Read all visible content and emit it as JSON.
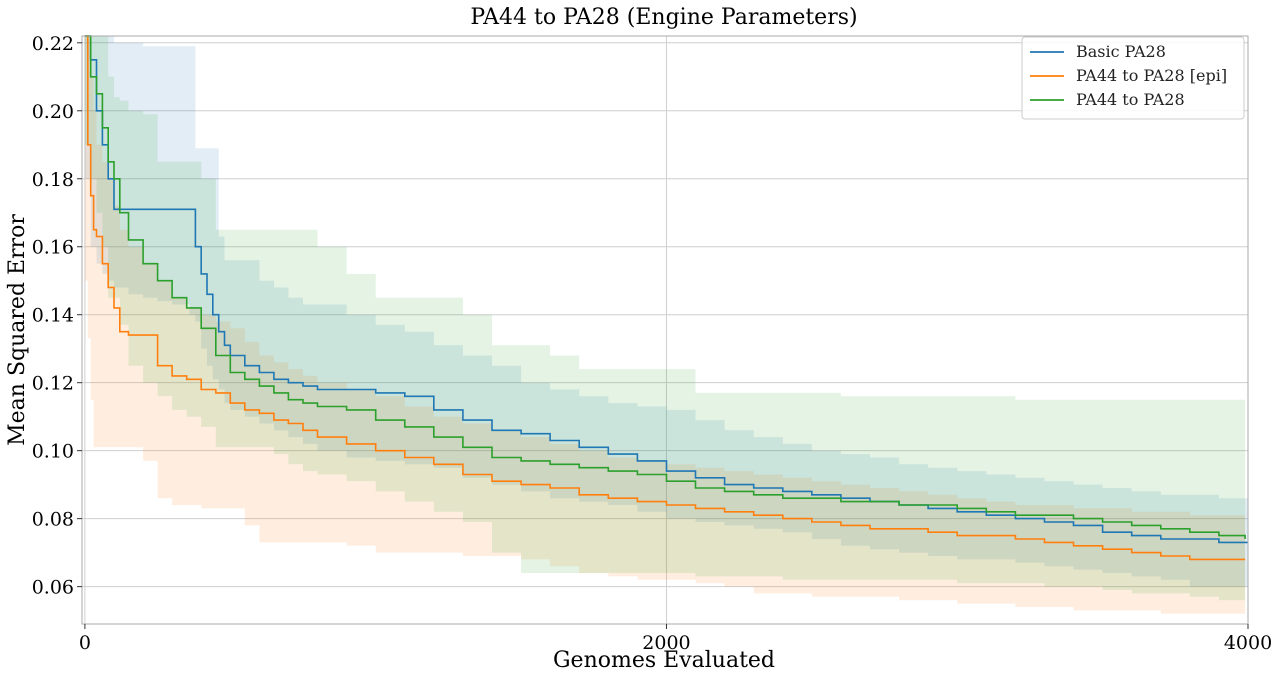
{
  "chart_data": {
    "type": "line",
    "title": "PA44 to PA28 (Engine Parameters)",
    "xlabel": "Genomes Evaluated",
    "ylabel": "Mean Squared Error",
    "xlim": [
      -10,
      4000
    ],
    "ylim": [
      0.049,
      0.222
    ],
    "xticks": [
      0,
      2000,
      4000
    ],
    "yticks": [
      0.06,
      0.08,
      0.1,
      0.12,
      0.14,
      0.16,
      0.18,
      0.2,
      0.22
    ],
    "ytick_labels": [
      "0.06",
      "0.08",
      "0.10",
      "0.12",
      "0.14",
      "0.16",
      "0.18",
      "0.20",
      "0.22"
    ],
    "xtick_labels": [
      "0",
      "2000",
      "4000"
    ],
    "grid": true,
    "legend_position": "top-right",
    "step": true,
    "series": [
      {
        "name": "Basic PA28",
        "color": "#1f77b4",
        "x": [
          0,
          20,
          40,
          60,
          80,
          100,
          150,
          200,
          250,
          300,
          360,
          380,
          400,
          420,
          440,
          460,
          480,
          500,
          550,
          600,
          650,
          700,
          750,
          800,
          900,
          1000,
          1100,
          1200,
          1300,
          1400,
          1500,
          1600,
          1700,
          1800,
          1900,
          2000,
          2100,
          2200,
          2300,
          2400,
          2500,
          2600,
          2700,
          2800,
          2900,
          3000,
          3100,
          3200,
          3300,
          3400,
          3500,
          3600,
          3700,
          3800,
          3900,
          4000
        ],
        "y": [
          0.222,
          0.215,
          0.2,
          0.19,
          0.18,
          0.171,
          0.171,
          0.171,
          0.171,
          0.171,
          0.171,
          0.16,
          0.152,
          0.146,
          0.14,
          0.135,
          0.131,
          0.128,
          0.125,
          0.123,
          0.121,
          0.12,
          0.119,
          0.118,
          0.118,
          0.117,
          0.116,
          0.112,
          0.109,
          0.106,
          0.105,
          0.103,
          0.101,
          0.099,
          0.097,
          0.094,
          0.092,
          0.09,
          0.089,
          0.088,
          0.087,
          0.086,
          0.085,
          0.084,
          0.083,
          0.082,
          0.081,
          0.08,
          0.079,
          0.078,
          0.076,
          0.075,
          0.074,
          0.074,
          0.073,
          0.073
        ],
        "band_low": [
          0.18,
          0.16,
          0.155,
          0.152,
          0.15,
          0.148,
          0.146,
          0.145,
          0.144,
          0.143,
          0.14,
          0.138,
          0.13,
          0.125,
          0.121,
          0.118,
          0.114,
          0.112,
          0.11,
          0.108,
          0.106,
          0.104,
          0.102,
          0.1,
          0.098,
          0.097,
          0.096,
          0.095,
          0.092,
          0.09,
          0.088,
          0.086,
          0.085,
          0.084,
          0.082,
          0.08,
          0.079,
          0.078,
          0.077,
          0.076,
          0.074,
          0.072,
          0.071,
          0.07,
          0.069,
          0.068,
          0.068,
          0.067,
          0.066,
          0.065,
          0.064,
          0.063,
          0.062,
          0.06,
          0.06,
          0.06
        ],
        "band_high": [
          0.222,
          0.222,
          0.222,
          0.222,
          0.222,
          0.22,
          0.22,
          0.219,
          0.219,
          0.219,
          0.219,
          0.189,
          0.189,
          0.189,
          0.189,
          0.163,
          0.156,
          0.156,
          0.156,
          0.15,
          0.148,
          0.145,
          0.143,
          0.143,
          0.14,
          0.137,
          0.135,
          0.131,
          0.128,
          0.125,
          0.12,
          0.118,
          0.116,
          0.114,
          0.113,
          0.112,
          0.109,
          0.106,
          0.104,
          0.102,
          0.1,
          0.099,
          0.098,
          0.096,
          0.095,
          0.094,
          0.093,
          0.092,
          0.091,
          0.09,
          0.089,
          0.088,
          0.087,
          0.087,
          0.086,
          0.086
        ]
      },
      {
        "name": "PA44 to PA28 [epi]",
        "color": "#ff7f0e",
        "x": [
          0,
          10,
          20,
          30,
          40,
          60,
          80,
          100,
          120,
          150,
          200,
          250,
          300,
          350,
          400,
          450,
          500,
          550,
          600,
          650,
          700,
          750,
          800,
          900,
          1000,
          1100,
          1200,
          1300,
          1400,
          1500,
          1600,
          1700,
          1800,
          1900,
          2000,
          2100,
          2200,
          2300,
          2400,
          2500,
          2600,
          2700,
          2800,
          2900,
          3000,
          3100,
          3200,
          3300,
          3400,
          3500,
          3600,
          3700,
          3800,
          3900,
          3990
        ],
        "y": [
          0.222,
          0.19,
          0.175,
          0.165,
          0.163,
          0.155,
          0.148,
          0.142,
          0.135,
          0.134,
          0.134,
          0.125,
          0.122,
          0.121,
          0.118,
          0.117,
          0.114,
          0.112,
          0.111,
          0.109,
          0.108,
          0.106,
          0.104,
          0.102,
          0.1,
          0.098,
          0.096,
          0.093,
          0.091,
          0.09,
          0.089,
          0.087,
          0.086,
          0.085,
          0.084,
          0.083,
          0.082,
          0.081,
          0.08,
          0.079,
          0.078,
          0.077,
          0.077,
          0.076,
          0.075,
          0.075,
          0.074,
          0.073,
          0.072,
          0.071,
          0.07,
          0.069,
          0.068,
          0.068,
          0.068
        ],
        "band_low": [
          0.15,
          0.133,
          0.115,
          0.101,
          0.101,
          0.101,
          0.101,
          0.101,
          0.101,
          0.101,
          0.097,
          0.086,
          0.084,
          0.084,
          0.083,
          0.083,
          0.083,
          0.078,
          0.073,
          0.073,
          0.073,
          0.073,
          0.073,
          0.072,
          0.07,
          0.07,
          0.07,
          0.069,
          0.069,
          0.068,
          0.066,
          0.064,
          0.063,
          0.062,
          0.062,
          0.061,
          0.06,
          0.058,
          0.058,
          0.057,
          0.057,
          0.057,
          0.056,
          0.056,
          0.055,
          0.055,
          0.054,
          0.054,
          0.053,
          0.053,
          0.053,
          0.052,
          0.052,
          0.052,
          0.052
        ],
        "band_high": [
          0.222,
          0.222,
          0.21,
          0.2,
          0.19,
          0.185,
          0.18,
          0.172,
          0.165,
          0.16,
          0.155,
          0.15,
          0.145,
          0.142,
          0.14,
          0.138,
          0.136,
          0.132,
          0.128,
          0.126,
          0.124,
          0.122,
          0.12,
          0.118,
          0.116,
          0.113,
          0.11,
          0.108,
          0.106,
          0.104,
          0.102,
          0.1,
          0.098,
          0.097,
          0.096,
          0.095,
          0.094,
          0.093,
          0.092,
          0.091,
          0.09,
          0.089,
          0.088,
          0.087,
          0.086,
          0.085,
          0.084,
          0.084,
          0.083,
          0.083,
          0.082,
          0.082,
          0.081,
          0.081,
          0.081
        ]
      },
      {
        "name": "PA44 to PA28",
        "color": "#2ca02c",
        "x": [
          0,
          20,
          40,
          60,
          80,
          100,
          120,
          150,
          200,
          250,
          300,
          350,
          400,
          450,
          500,
          550,
          600,
          650,
          700,
          750,
          800,
          900,
          1000,
          1100,
          1200,
          1300,
          1400,
          1500,
          1600,
          1700,
          1800,
          1900,
          2000,
          2100,
          2200,
          2300,
          2400,
          2500,
          2600,
          2700,
          2800,
          2900,
          3000,
          3100,
          3200,
          3300,
          3400,
          3500,
          3600,
          3700,
          3800,
          3900,
          3990
        ],
        "y": [
          0.222,
          0.21,
          0.205,
          0.195,
          0.185,
          0.18,
          0.17,
          0.162,
          0.155,
          0.15,
          0.145,
          0.142,
          0.136,
          0.128,
          0.123,
          0.121,
          0.119,
          0.117,
          0.115,
          0.114,
          0.113,
          0.112,
          0.109,
          0.107,
          0.104,
          0.101,
          0.098,
          0.097,
          0.096,
          0.095,
          0.094,
          0.093,
          0.091,
          0.089,
          0.088,
          0.087,
          0.086,
          0.086,
          0.085,
          0.085,
          0.084,
          0.084,
          0.083,
          0.082,
          0.081,
          0.081,
          0.08,
          0.079,
          0.078,
          0.077,
          0.076,
          0.075,
          0.074
        ],
        "band_low": [
          0.19,
          0.18,
          0.17,
          0.16,
          0.145,
          0.145,
          0.137,
          0.125,
          0.12,
          0.116,
          0.112,
          0.11,
          0.107,
          0.101,
          0.101,
          0.101,
          0.101,
          0.099,
          0.096,
          0.094,
          0.093,
          0.091,
          0.088,
          0.085,
          0.082,
          0.079,
          0.07,
          0.064,
          0.064,
          0.064,
          0.064,
          0.064,
          0.064,
          0.063,
          0.063,
          0.063,
          0.062,
          0.062,
          0.062,
          0.062,
          0.062,
          0.062,
          0.061,
          0.061,
          0.061,
          0.06,
          0.06,
          0.059,
          0.058,
          0.058,
          0.057,
          0.056,
          0.056
        ],
        "band_high": [
          0.222,
          0.222,
          0.222,
          0.222,
          0.21,
          0.204,
          0.203,
          0.2,
          0.199,
          0.185,
          0.185,
          0.185,
          0.18,
          0.165,
          0.165,
          0.165,
          0.165,
          0.165,
          0.165,
          0.165,
          0.16,
          0.152,
          0.145,
          0.145,
          0.145,
          0.14,
          0.131,
          0.131,
          0.128,
          0.124,
          0.124,
          0.124,
          0.124,
          0.117,
          0.117,
          0.117,
          0.117,
          0.117,
          0.116,
          0.116,
          0.116,
          0.116,
          0.116,
          0.116,
          0.115,
          0.115,
          0.115,
          0.115,
          0.115,
          0.115,
          0.115,
          0.115,
          0.105
        ]
      }
    ]
  }
}
